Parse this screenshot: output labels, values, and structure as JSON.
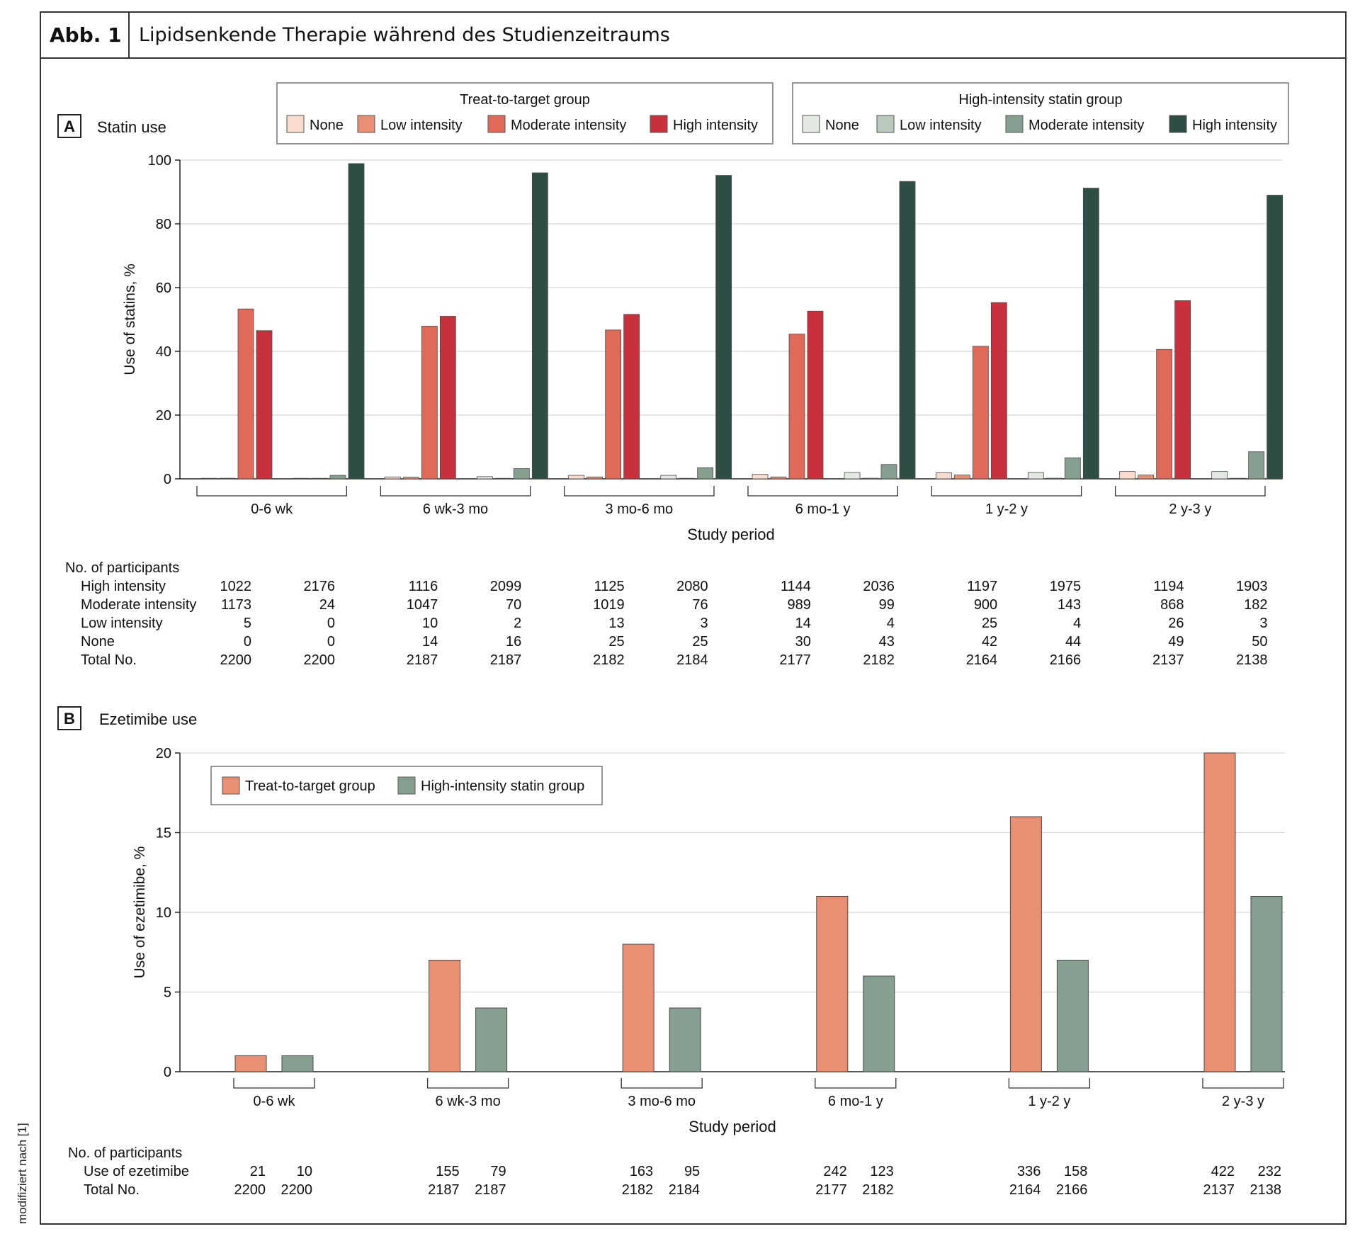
{
  "figure": {
    "label": "Abb. 1",
    "title": "Lipidsenkende Therapie während des Studienzeitraums",
    "side_note": "modifiziert nach [1]"
  },
  "colors": {
    "ttt_none": "#fadbd0",
    "ttt_low": "#e98f73",
    "ttt_moderate": "#e06a5a",
    "ttt_high": "#c8303d",
    "his_none": "#e4e8e2",
    "his_low": "#b9c9bd",
    "his_moderate": "#869f90",
    "his_high": "#2e4d44",
    "ezetimibe_ttt": "#e98f73",
    "ezetimibe_his": "#869f90"
  },
  "chart_data": [
    {
      "type": "bar",
      "panel_label": "A",
      "title": "Statin use",
      "xlabel": "Study period",
      "ylabel": "Use of statins, %",
      "ylim": [
        0,
        100
      ],
      "yticks": [
        0,
        20,
        40,
        60,
        80,
        100
      ],
      "grid": true,
      "categories": [
        "0-6 wk",
        "6 wk-3 mo",
        "3 mo-6 mo",
        "6 mo-1 y",
        "1 y-2 y",
        "2 y-3 y"
      ],
      "legend_groups": [
        {
          "title": "Treat-to-target group",
          "entries": [
            "None",
            "Low intensity",
            "Moderate intensity",
            "High intensity"
          ]
        },
        {
          "title": "High-intensity statin group",
          "entries": [
            "None",
            "Low intensity",
            "Moderate intensity",
            "High intensity"
          ]
        }
      ],
      "series": [
        {
          "group": "Treat-to-target group",
          "name": "None",
          "color_key": "ttt_none",
          "values": [
            0,
            0.6,
            1.1,
            1.4,
            1.9,
            2.3
          ]
        },
        {
          "group": "Treat-to-target group",
          "name": "Low intensity",
          "color_key": "ttt_low",
          "values": [
            0.2,
            0.5,
            0.6,
            0.6,
            1.2,
            1.2
          ]
        },
        {
          "group": "Treat-to-target group",
          "name": "Moderate intensity",
          "color_key": "ttt_moderate",
          "values": [
            53.3,
            47.9,
            46.7,
            45.4,
            41.6,
            40.6
          ]
        },
        {
          "group": "Treat-to-target group",
          "name": "High intensity",
          "color_key": "ttt_high",
          "values": [
            46.5,
            51.0,
            51.6,
            52.6,
            55.3,
            55.9
          ]
        },
        {
          "group": "High-intensity statin group",
          "name": "None",
          "color_key": "his_none",
          "values": [
            0,
            0.7,
            1.1,
            2.0,
            2.0,
            2.3
          ]
        },
        {
          "group": "High-intensity statin group",
          "name": "Low intensity",
          "color_key": "his_low",
          "values": [
            0,
            0.1,
            0.1,
            0.2,
            0.2,
            0.1
          ]
        },
        {
          "group": "High-intensity statin group",
          "name": "Moderate intensity",
          "color_key": "his_moderate",
          "values": [
            1.1,
            3.2,
            3.5,
            4.5,
            6.6,
            8.5
          ]
        },
        {
          "group": "High-intensity statin group",
          "name": "High intensity",
          "color_key": "his_high",
          "values": [
            98.9,
            96.0,
            95.2,
            93.3,
            91.2,
            89.0
          ]
        }
      ],
      "participants_table": {
        "header": "No. of participants",
        "rows": [
          {
            "label": "High intensity",
            "values": [
              "1022",
              "2176",
              "1116",
              "2099",
              "1125",
              "2080",
              "1144",
              "2036",
              "1197",
              "1975",
              "1194",
              "1903"
            ]
          },
          {
            "label": "Moderate intensity",
            "values": [
              "1173",
              "24",
              "1047",
              "70",
              "1019",
              "76",
              "989",
              "99",
              "900",
              "143",
              "868",
              "182"
            ]
          },
          {
            "label": "Low intensity",
            "values": [
              "5",
              "0",
              "10",
              "2",
              "13",
              "3",
              "14",
              "4",
              "25",
              "4",
              "26",
              "3"
            ]
          },
          {
            "label": "None",
            "values": [
              "0",
              "0",
              "14",
              "16",
              "25",
              "25",
              "30",
              "43",
              "42",
              "44",
              "49",
              "50"
            ]
          },
          {
            "label": "Total No.",
            "values": [
              "2200",
              "2200",
              "2187",
              "2187",
              "2182",
              "2184",
              "2177",
              "2182",
              "2164",
              "2166",
              "2137",
              "2138"
            ]
          }
        ]
      }
    },
    {
      "type": "bar",
      "panel_label": "B",
      "title": "Ezetimibe use",
      "xlabel": "Study period",
      "ylabel": "Use of ezetimibe, %",
      "ylim": [
        0,
        20
      ],
      "yticks": [
        0,
        5,
        10,
        15,
        20
      ],
      "grid": true,
      "legend_position": "top-left",
      "categories": [
        "0-6 wk",
        "6 wk-3 mo",
        "3 mo-6 mo",
        "6 mo-1 y",
        "1 y-2 y",
        "2 y-3 y"
      ],
      "series": [
        {
          "name": "Treat-to-target group",
          "color_key": "ezetimibe_ttt",
          "values": [
            1,
            7,
            8,
            11,
            16,
            20
          ]
        },
        {
          "name": "High-intensity statin group",
          "color_key": "ezetimibe_his",
          "values": [
            1,
            4,
            4,
            6,
            7,
            11
          ]
        }
      ],
      "participants_table": {
        "header": "No. of participants",
        "rows": [
          {
            "label": "Use of ezetimibe",
            "values": [
              "21",
              "10",
              "155",
              "79",
              "163",
              "95",
              "242",
              "123",
              "336",
              "158",
              "422",
              "232"
            ]
          },
          {
            "label": "Total No.",
            "values": [
              "2200",
              "2200",
              "2187",
              "2187",
              "2182",
              "2184",
              "2177",
              "2182",
              "2164",
              "2166",
              "2137",
              "2138"
            ]
          }
        ]
      }
    }
  ]
}
